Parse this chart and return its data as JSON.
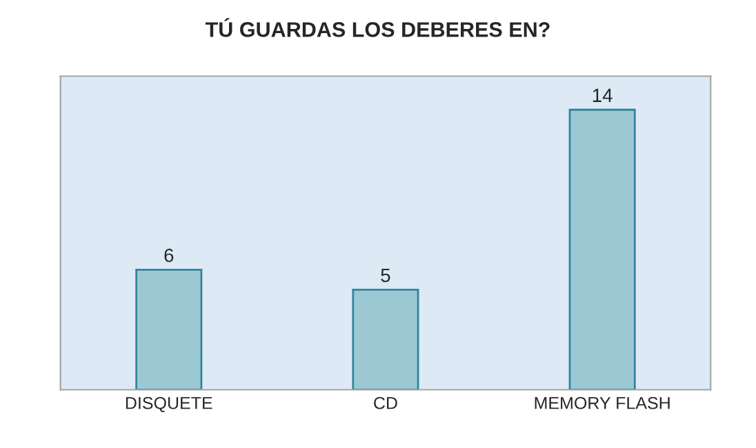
{
  "chart_data": {
    "type": "bar",
    "title": "TÚ GUARDAS LOS DEBERES EN?",
    "categories": [
      "DISQUETE",
      "CD",
      "MEMORY FLASH"
    ],
    "values": [
      6,
      5,
      14
    ],
    "color": "#93cddd",
    "data_labels": true,
    "grid": false,
    "legend": false
  }
}
